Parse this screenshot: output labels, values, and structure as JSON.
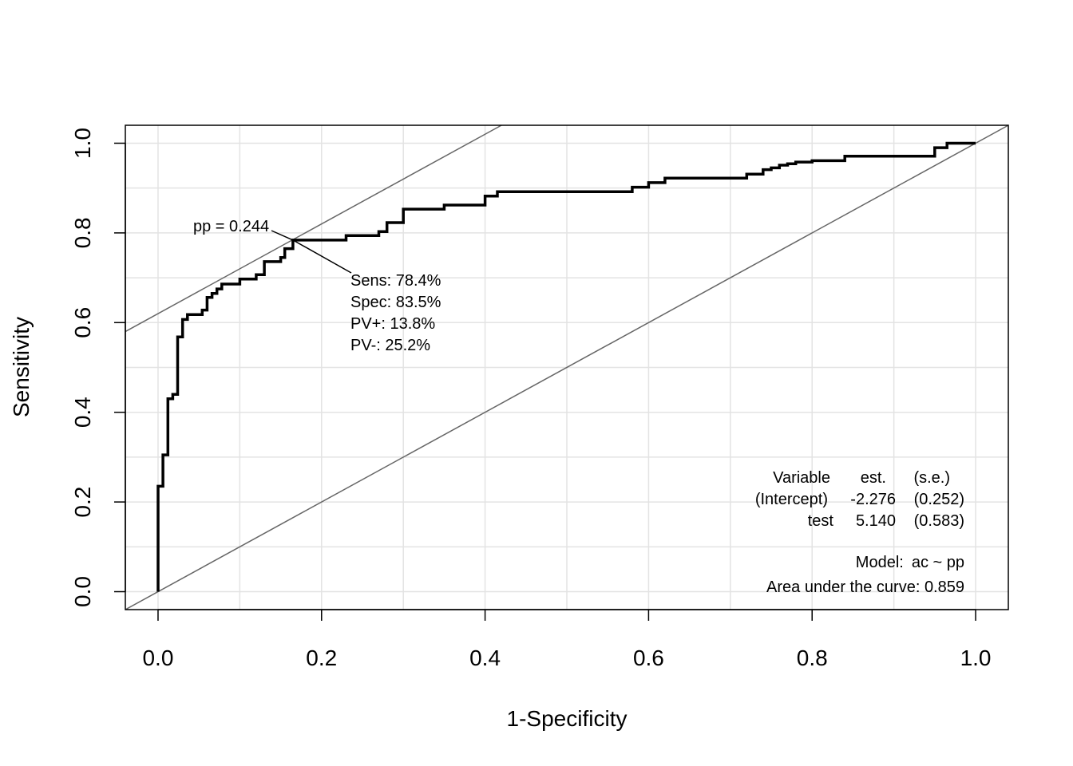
{
  "chart_data": {
    "type": "line",
    "title": "",
    "xlabel": "1-Specificity",
    "ylabel": "Sensitivity",
    "xlim": [
      -0.04,
      1.04
    ],
    "ylim": [
      -0.04,
      1.04
    ],
    "x_ticks": [
      0.0,
      0.2,
      0.4,
      0.6,
      0.8,
      1.0
    ],
    "y_ticks": [
      0.0,
      0.2,
      0.4,
      0.6,
      0.8,
      1.0
    ],
    "x_tick_labels": [
      "0.0",
      "0.2",
      "0.4",
      "0.6",
      "0.8",
      "1.0"
    ],
    "y_tick_labels": [
      "0.0",
      "0.2",
      "0.4",
      "0.6",
      "0.8",
      "1.0"
    ],
    "grid": true,
    "grid_step": 0.1,
    "colors": {
      "roc": "#000000",
      "reference": "#666666",
      "grid": "#e3e3e3"
    },
    "series": [
      {
        "name": "",
        "x": [
          0.0,
          0.0,
          0.006,
          0.006,
          0.012,
          0.012,
          0.018,
          0.018,
          0.024,
          0.024,
          0.03,
          0.03,
          0.036,
          0.036,
          0.054,
          0.054,
          0.06,
          0.06,
          0.066,
          0.066,
          0.072,
          0.072,
          0.078,
          0.078,
          0.1,
          0.1,
          0.12,
          0.12,
          0.13,
          0.13,
          0.15,
          0.15,
          0.155,
          0.155,
          0.165,
          0.165,
          0.23,
          0.23,
          0.27,
          0.27,
          0.28,
          0.28,
          0.3,
          0.3,
          0.35,
          0.35,
          0.4,
          0.4,
          0.415,
          0.415,
          0.58,
          0.58,
          0.6,
          0.6,
          0.62,
          0.62,
          0.63,
          0.63,
          0.7,
          0.7,
          0.72,
          0.72,
          0.74,
          0.74,
          0.75,
          0.75,
          0.76,
          0.76,
          0.77,
          0.77,
          0.78,
          0.78,
          0.8,
          0.8,
          0.81,
          0.81,
          0.83,
          0.83,
          0.84,
          0.84,
          0.95,
          0.95,
          0.965,
          0.965,
          1.0
        ],
        "y": [
          0.0,
          0.235,
          0.235,
          0.305,
          0.305,
          0.43,
          0.43,
          0.44,
          0.44,
          0.568,
          0.568,
          0.607,
          0.607,
          0.618,
          0.618,
          0.628,
          0.628,
          0.656,
          0.656,
          0.665,
          0.665,
          0.675,
          0.675,
          0.686,
          0.686,
          0.697,
          0.697,
          0.707,
          0.707,
          0.736,
          0.736,
          0.745,
          0.745,
          0.765,
          0.765,
          0.784,
          0.784,
          0.794,
          0.794,
          0.803,
          0.803,
          0.823,
          0.823,
          0.853,
          0.853,
          0.862,
          0.862,
          0.882,
          0.882,
          0.892,
          0.892,
          0.902,
          0.902,
          0.912,
          0.912,
          0.922,
          0.922,
          0.922,
          0.922,
          0.922,
          0.922,
          0.931,
          0.931,
          0.941,
          0.941,
          0.945,
          0.945,
          0.951,
          0.951,
          0.954,
          0.954,
          0.958,
          0.958,
          0.961,
          0.961,
          0.961,
          0.961,
          0.961,
          0.961,
          0.971,
          0.971,
          0.99,
          0.99,
          1.0,
          1.0
        ]
      }
    ],
    "reference_lines": [
      {
        "name": "",
        "intercept": 0.0,
        "slope": 1.0
      },
      {
        "name": "",
        "intercept": 0.62,
        "slope": 1.0
      }
    ],
    "annotations": {
      "cutoff_point": {
        "x": 0.165,
        "y": 0.784
      },
      "cutoff_label": "pp = 0.244",
      "stats": [
        "Sens: 78.4%",
        "Spec: 83.5%",
        "PV+: 13.8%",
        "PV-: 25.2%"
      ]
    },
    "model_table": {
      "header": {
        "variable": "Variable",
        "est": "est.",
        "se": "(s.e.)"
      },
      "rows": [
        {
          "variable": "(Intercept)",
          "est": "-2.276",
          "se": "(0.252)"
        },
        {
          "variable": "test",
          "est": "5.140",
          "se": "(0.583)"
        }
      ],
      "model_label": "Model:",
      "model": "ac ~ pp",
      "auc_text": "Area under the curve: 0.859"
    }
  }
}
